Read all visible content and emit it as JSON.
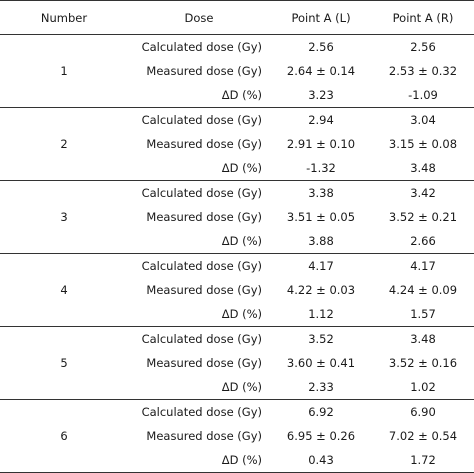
{
  "headers": [
    "Number",
    "Dose",
    "Point A (L)",
    "Point A (R)"
  ],
  "rows": [
    {
      "number": "1",
      "items": [
        {
          "dose": "Calculated dose (Gy)",
          "left": "2.56",
          "right": "2.56"
        },
        {
          "dose": "Measured dose (Gy)",
          "left": "2.64 ± 0.14",
          "right": "2.53 ± 0.32"
        },
        {
          "dose": "ΔD (%)",
          "left": "3.23",
          "right": "-1.09"
        }
      ]
    },
    {
      "number": "2",
      "items": [
        {
          "dose": "Calculated dose (Gy)",
          "left": "2.94",
          "right": "3.04"
        },
        {
          "dose": "Measured dose (Gy)",
          "left": "2.91 ± 0.10",
          "right": "3.15 ± 0.08"
        },
        {
          "dose": "ΔD (%)",
          "left": "-1.32",
          "right": "3.48"
        }
      ]
    },
    {
      "number": "3",
      "items": [
        {
          "dose": "Calculated dose (Gy)",
          "left": "3.38",
          "right": "3.42"
        },
        {
          "dose": "Measured dose (Gy)",
          "left": "3.51 ± 0.05",
          "right": "3.52 ± 0.21"
        },
        {
          "dose": "ΔD (%)",
          "left": "3.88",
          "right": "2.66"
        }
      ]
    },
    {
      "number": "4",
      "items": [
        {
          "dose": "Calculated dose (Gy)",
          "left": "4.17",
          "right": "4.17"
        },
        {
          "dose": "Measured dose (Gy)",
          "left": "4.22 ± 0.03",
          "right": "4.24 ± 0.09"
        },
        {
          "dose": "ΔD (%)",
          "left": "1.12",
          "right": "1.57"
        }
      ]
    },
    {
      "number": "5",
      "items": [
        {
          "dose": "Calculated dose (Gy)",
          "left": "3.52",
          "right": "3.48"
        },
        {
          "dose": "Measured dose (Gy)",
          "left": "3.60 ± 0.41",
          "right": "3.52 ± 0.16"
        },
        {
          "dose": "ΔD (%)",
          "left": "2.33",
          "right": "1.02"
        }
      ]
    },
    {
      "number": "6",
      "items": [
        {
          "dose": "Calculated dose (Gy)",
          "left": "6.92",
          "right": "6.90"
        },
        {
          "dose": "Measured dose (Gy)",
          "left": "6.95 ± 0.26",
          "right": "7.02 ± 0.54"
        },
        {
          "dose": "ΔD (%)",
          "left": "0.43",
          "right": "1.72"
        }
      ]
    }
  ]
}
